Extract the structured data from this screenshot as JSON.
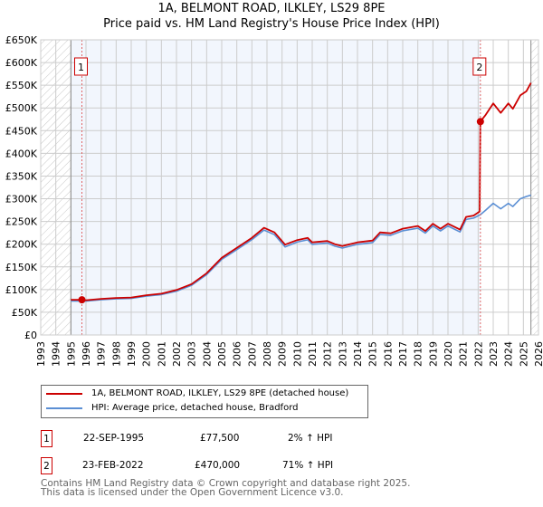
{
  "title_line1": "1A, BELMONT ROAD, ILKLEY, LS29 8PE",
  "title_line2": "Price paid vs. HM Land Registry's House Price Index (HPI)",
  "chart_data": {
    "type": "line",
    "title": "1A, BELMONT ROAD, ILKLEY, LS29 8PE — Price paid vs. HM Land Registry's House Price Index (HPI)",
    "xlim": [
      1993,
      2026
    ],
    "ylim": [
      0,
      650000
    ],
    "x_ticks": [
      "1993",
      "1994",
      "1995",
      "1996",
      "1997",
      "1998",
      "1999",
      "2000",
      "2001",
      "2002",
      "2003",
      "2004",
      "2005",
      "2006",
      "2007",
      "2008",
      "2009",
      "2010",
      "2011",
      "2012",
      "2013",
      "2014",
      "2015",
      "2016",
      "2017",
      "2018",
      "2019",
      "2020",
      "2021",
      "2022",
      "2023",
      "2024",
      "2025",
      "2026"
    ],
    "y_ticks": [
      "£0",
      "£50K",
      "£100K",
      "£150K",
      "£200K",
      "£250K",
      "£300K",
      "£350K",
      "£400K",
      "£450K",
      "£500K",
      "£550K",
      "£600K",
      "£650K"
    ],
    "grid": true,
    "legend_placement": "below",
    "series": [
      {
        "name": "1A, BELMONT ROAD, ILKLEY, LS29 8PE (detached house)",
        "color": "#cc0000",
        "x": [
          1995.0,
          1995.73,
          1996,
          1997,
          1998,
          1999,
          2000,
          2001,
          2002,
          2003,
          2004,
          2005,
          2006,
          2007,
          2007.8,
          2008.5,
          2009.2,
          2010,
          2010.7,
          2011,
          2012,
          2012.5,
          2013,
          2014,
          2015,
          2015.5,
          2016.2,
          2017,
          2018,
          2018.5,
          2019,
          2019.5,
          2020,
          2020.8,
          2021.2,
          2021.7,
          2022.1,
          2022.15,
          2022.5,
          2023,
          2023.5,
          2024,
          2024.3,
          2024.8,
          2025.2,
          2025.5
        ],
        "y": [
          77500,
          77500,
          76500,
          79500,
          81500,
          82500,
          87500,
          91000,
          99000,
          112000,
          136000,
          170000,
          192000,
          214000,
          236000,
          226000,
          199000,
          209000,
          214000,
          204000,
          207000,
          200000,
          196000,
          204000,
          208000,
          226000,
          224000,
          234000,
          240000,
          229000,
          245000,
          234000,
          245000,
          232000,
          260000,
          263000,
          272000,
          470000,
          485000,
          510000,
          489000,
          510000,
          498000,
          528000,
          537000,
          555000
        ]
      },
      {
        "name": "HPI: Average price, detached house, Bradford",
        "color": "#5b8fd4",
        "x": [
          1995.0,
          1996,
          1997,
          1998,
          1999,
          2000,
          2001,
          2002,
          2003,
          2004,
          2005,
          2006,
          2007,
          2007.8,
          2008.5,
          2009.2,
          2010,
          2010.7,
          2011,
          2012,
          2012.5,
          2013,
          2014,
          2015,
          2015.5,
          2016.2,
          2017,
          2018,
          2018.5,
          2019,
          2019.5,
          2020,
          2020.8,
          2021.2,
          2021.7,
          2022.15,
          2022.5,
          2023,
          2023.5,
          2024,
          2024.3,
          2024.8,
          2025.2,
          2025.5
        ],
        "y": [
          75000,
          74500,
          77500,
          79500,
          80500,
          85500,
          89000,
          96500,
          109500,
          133000,
          166500,
          188000,
          210000,
          231000,
          221000,
          194000,
          204500,
          209500,
          199500,
          202500,
          195500,
          191500,
          199500,
          203500,
          221500,
          219500,
          229500,
          235000,
          224500,
          240000,
          229000,
          240000,
          227000,
          254500,
          257500,
          265000,
          275000,
          290000,
          278000,
          290000,
          283000,
          300000,
          305000,
          308000
        ]
      }
    ],
    "annotations": [
      {
        "label": "1",
        "x": 1995.73,
        "y": 77500
      },
      {
        "label": "2",
        "x": 2022.15,
        "y": 470000
      }
    ]
  },
  "legend": {
    "red_label": "1A, BELMONT ROAD, ILKLEY, LS29 8PE (detached house)",
    "blue_label": "HPI: Average price, detached house, Bradford"
  },
  "transactions": [
    {
      "num": "1",
      "date": "22-SEP-1995",
      "price": "£77,500",
      "hpi": "2% ↑ HPI"
    },
    {
      "num": "2",
      "date": "23-FEB-2022",
      "price": "£470,000",
      "hpi": "71% ↑ HPI"
    }
  ],
  "footer": {
    "line1": "Contains HM Land Registry data © Crown copyright and database right 2025.",
    "line2": "This data is licensed under the Open Government Licence v3.0."
  },
  "colors": {
    "red": "#cc0000",
    "blue": "#5b8fd4",
    "shade": "#f2f6fd",
    "grid": "#cccccc"
  }
}
